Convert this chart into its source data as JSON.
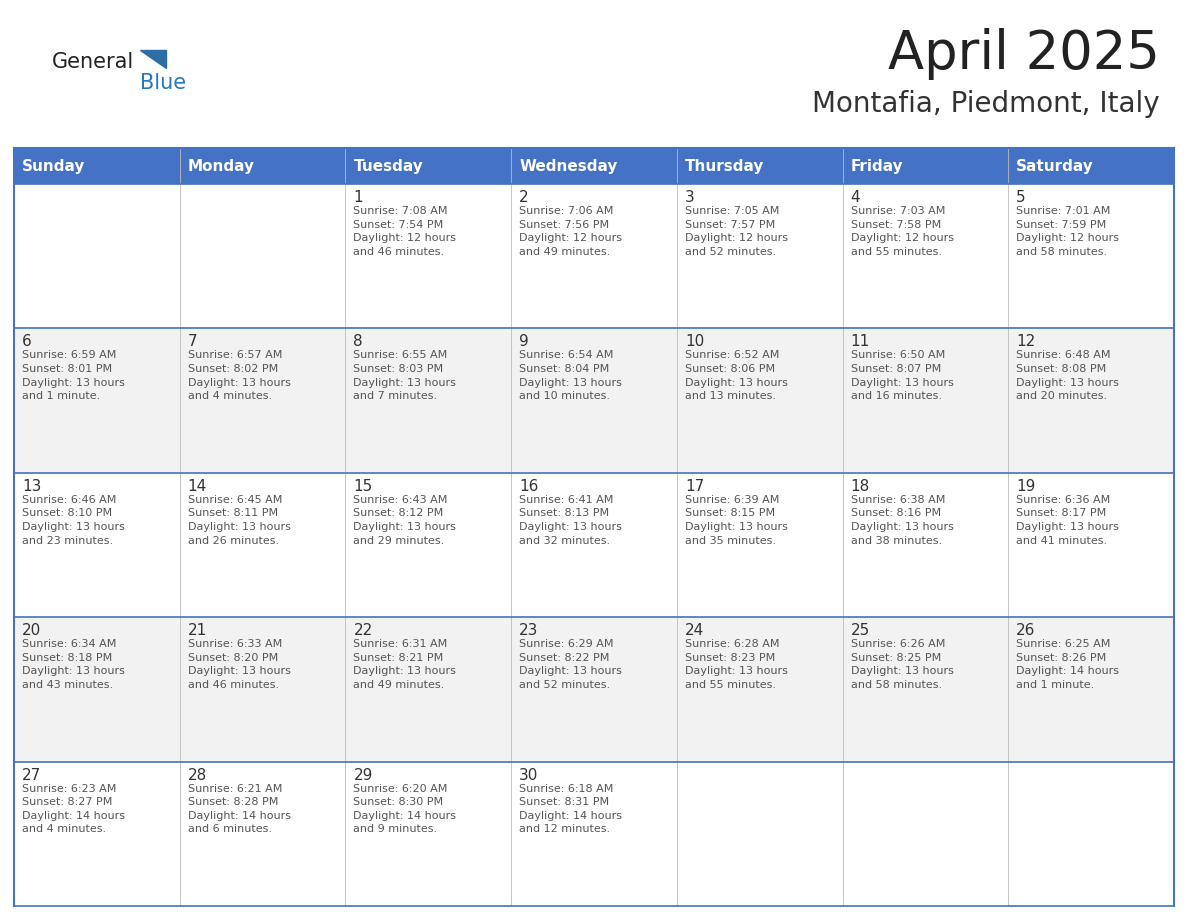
{
  "title": "April 2025",
  "subtitle": "Montafia, Piedmont, Italy",
  "days_of_week": [
    "Sunday",
    "Monday",
    "Tuesday",
    "Wednesday",
    "Thursday",
    "Friday",
    "Saturday"
  ],
  "header_bg": "#4472C4",
  "header_text": "#FFFFFF",
  "odd_row_bg": "#FFFFFF",
  "even_row_bg": "#F2F2F2",
  "border_color": "#4472C4",
  "day_number_color": "#333333",
  "cell_text_color": "#555555",
  "title_color": "#222222",
  "subtitle_color": "#333333",
  "logo_general_color": "#222222",
  "logo_blue_color": "#2478C0",
  "logo_triangle_color": "#2E6EA6",
  "weeks": [
    [
      {
        "day": "",
        "info": ""
      },
      {
        "day": "",
        "info": ""
      },
      {
        "day": "1",
        "info": "Sunrise: 7:08 AM\nSunset: 7:54 PM\nDaylight: 12 hours\nand 46 minutes."
      },
      {
        "day": "2",
        "info": "Sunrise: 7:06 AM\nSunset: 7:56 PM\nDaylight: 12 hours\nand 49 minutes."
      },
      {
        "day": "3",
        "info": "Sunrise: 7:05 AM\nSunset: 7:57 PM\nDaylight: 12 hours\nand 52 minutes."
      },
      {
        "day": "4",
        "info": "Sunrise: 7:03 AM\nSunset: 7:58 PM\nDaylight: 12 hours\nand 55 minutes."
      },
      {
        "day": "5",
        "info": "Sunrise: 7:01 AM\nSunset: 7:59 PM\nDaylight: 12 hours\nand 58 minutes."
      }
    ],
    [
      {
        "day": "6",
        "info": "Sunrise: 6:59 AM\nSunset: 8:01 PM\nDaylight: 13 hours\nand 1 minute."
      },
      {
        "day": "7",
        "info": "Sunrise: 6:57 AM\nSunset: 8:02 PM\nDaylight: 13 hours\nand 4 minutes."
      },
      {
        "day": "8",
        "info": "Sunrise: 6:55 AM\nSunset: 8:03 PM\nDaylight: 13 hours\nand 7 minutes."
      },
      {
        "day": "9",
        "info": "Sunrise: 6:54 AM\nSunset: 8:04 PM\nDaylight: 13 hours\nand 10 minutes."
      },
      {
        "day": "10",
        "info": "Sunrise: 6:52 AM\nSunset: 8:06 PM\nDaylight: 13 hours\nand 13 minutes."
      },
      {
        "day": "11",
        "info": "Sunrise: 6:50 AM\nSunset: 8:07 PM\nDaylight: 13 hours\nand 16 minutes."
      },
      {
        "day": "12",
        "info": "Sunrise: 6:48 AM\nSunset: 8:08 PM\nDaylight: 13 hours\nand 20 minutes."
      }
    ],
    [
      {
        "day": "13",
        "info": "Sunrise: 6:46 AM\nSunset: 8:10 PM\nDaylight: 13 hours\nand 23 minutes."
      },
      {
        "day": "14",
        "info": "Sunrise: 6:45 AM\nSunset: 8:11 PM\nDaylight: 13 hours\nand 26 minutes."
      },
      {
        "day": "15",
        "info": "Sunrise: 6:43 AM\nSunset: 8:12 PM\nDaylight: 13 hours\nand 29 minutes."
      },
      {
        "day": "16",
        "info": "Sunrise: 6:41 AM\nSunset: 8:13 PM\nDaylight: 13 hours\nand 32 minutes."
      },
      {
        "day": "17",
        "info": "Sunrise: 6:39 AM\nSunset: 8:15 PM\nDaylight: 13 hours\nand 35 minutes."
      },
      {
        "day": "18",
        "info": "Sunrise: 6:38 AM\nSunset: 8:16 PM\nDaylight: 13 hours\nand 38 minutes."
      },
      {
        "day": "19",
        "info": "Sunrise: 6:36 AM\nSunset: 8:17 PM\nDaylight: 13 hours\nand 41 minutes."
      }
    ],
    [
      {
        "day": "20",
        "info": "Sunrise: 6:34 AM\nSunset: 8:18 PM\nDaylight: 13 hours\nand 43 minutes."
      },
      {
        "day": "21",
        "info": "Sunrise: 6:33 AM\nSunset: 8:20 PM\nDaylight: 13 hours\nand 46 minutes."
      },
      {
        "day": "22",
        "info": "Sunrise: 6:31 AM\nSunset: 8:21 PM\nDaylight: 13 hours\nand 49 minutes."
      },
      {
        "day": "23",
        "info": "Sunrise: 6:29 AM\nSunset: 8:22 PM\nDaylight: 13 hours\nand 52 minutes."
      },
      {
        "day": "24",
        "info": "Sunrise: 6:28 AM\nSunset: 8:23 PM\nDaylight: 13 hours\nand 55 minutes."
      },
      {
        "day": "25",
        "info": "Sunrise: 6:26 AM\nSunset: 8:25 PM\nDaylight: 13 hours\nand 58 minutes."
      },
      {
        "day": "26",
        "info": "Sunrise: 6:25 AM\nSunset: 8:26 PM\nDaylight: 14 hours\nand 1 minute."
      }
    ],
    [
      {
        "day": "27",
        "info": "Sunrise: 6:23 AM\nSunset: 8:27 PM\nDaylight: 14 hours\nand 4 minutes."
      },
      {
        "day": "28",
        "info": "Sunrise: 6:21 AM\nSunset: 8:28 PM\nDaylight: 14 hours\nand 6 minutes."
      },
      {
        "day": "29",
        "info": "Sunrise: 6:20 AM\nSunset: 8:30 PM\nDaylight: 14 hours\nand 9 minutes."
      },
      {
        "day": "30",
        "info": "Sunrise: 6:18 AM\nSunset: 8:31 PM\nDaylight: 14 hours\nand 12 minutes."
      },
      {
        "day": "",
        "info": ""
      },
      {
        "day": "",
        "info": ""
      },
      {
        "day": "",
        "info": ""
      }
    ]
  ],
  "fig_width": 11.88,
  "fig_height": 9.18,
  "dpi": 100
}
